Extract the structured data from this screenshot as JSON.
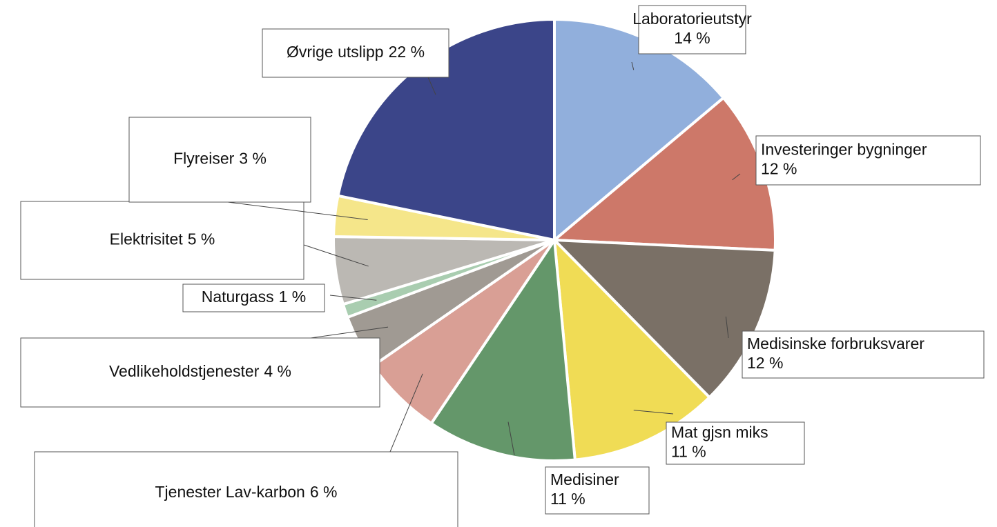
{
  "chart_data": {
    "type": "pie",
    "categories": [
      "Laboratorieutstyr",
      "Investeringer bygninger",
      "Medisinske forbruksvarer",
      "Mat gjsn miks",
      "Medisiner",
      "Tjenester Lav-karbon",
      "Vedlikeholdstjenester",
      "Naturgass",
      "Elektrisitet",
      "Flyreiser",
      "Øvrige utslipp"
    ],
    "values": [
      14,
      12,
      12,
      11,
      11,
      6,
      4,
      1,
      5,
      3,
      22
    ],
    "value_labels": [
      "14 %",
      "12 %",
      "12 %",
      "11 %",
      "11 %",
      "6 %",
      "4 %",
      "1 %",
      "5 %",
      "3 %",
      "22 %"
    ],
    "colors": [
      "#91afdc",
      "#cd7869",
      "#7a7066",
      "#f0dc55",
      "#64976a",
      "#d99f95",
      "#a09a93",
      "#a9cdb0",
      "#bbb8b3",
      "#f5e68a",
      "#3b4589"
    ]
  }
}
